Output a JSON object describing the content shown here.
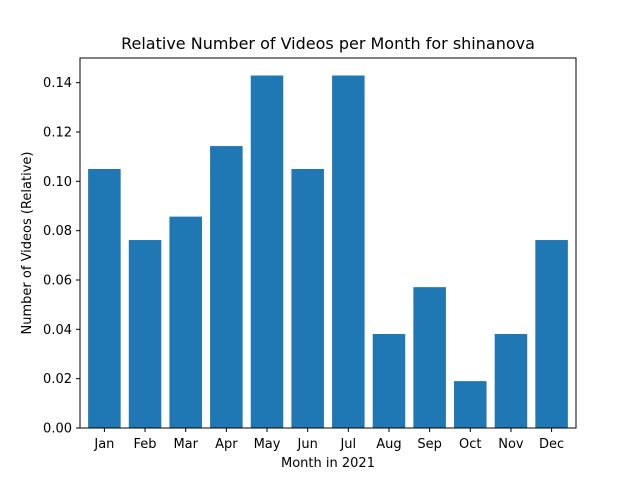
{
  "chart_data": {
    "type": "bar",
    "title": "Relative Number of Videos per Month for shinanova",
    "xlabel": "Month in 2021",
    "ylabel": "Number of Videos (Relative)",
    "categories": [
      "Jan",
      "Feb",
      "Mar",
      "Apr",
      "May",
      "Jun",
      "Jul",
      "Aug",
      "Sep",
      "Oct",
      "Nov",
      "Dec"
    ],
    "values": [
      0.105,
      0.0762,
      0.0857,
      0.1143,
      0.1429,
      0.105,
      0.1429,
      0.0381,
      0.0571,
      0.019,
      0.0381,
      0.0762
    ],
    "ylim": [
      0,
      0.15
    ],
    "yticks": [
      0.0,
      0.02,
      0.04,
      0.06,
      0.08,
      0.1,
      0.12,
      0.14
    ],
    "ytick_labels": [
      "0.00",
      "0.02",
      "0.04",
      "0.06",
      "0.08",
      "0.10",
      "0.12",
      "0.14"
    ],
    "grid": false,
    "colors": {
      "bar": "#1f77b4",
      "axis": "#000000"
    }
  }
}
